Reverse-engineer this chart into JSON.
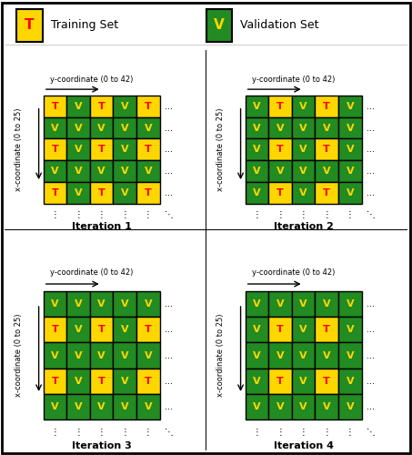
{
  "yellow": "#FFD700",
  "green": "#228B22",
  "red": "#FF0000",
  "yellow_letter": "#FFD700",
  "black": "#000000",
  "iterations": [
    {
      "title": "Iteration 1",
      "grid": [
        [
          "T",
          "V",
          "T",
          "V",
          "T"
        ],
        [
          "V",
          "V",
          "V",
          "V",
          "V"
        ],
        [
          "T",
          "V",
          "T",
          "V",
          "T"
        ],
        [
          "V",
          "V",
          "V",
          "V",
          "V"
        ],
        [
          "T",
          "V",
          "T",
          "V",
          "T"
        ]
      ]
    },
    {
      "title": "Iteration 2",
      "grid": [
        [
          "V",
          "T",
          "V",
          "T",
          "V"
        ],
        [
          "V",
          "V",
          "V",
          "V",
          "V"
        ],
        [
          "V",
          "T",
          "V",
          "T",
          "V"
        ],
        [
          "V",
          "V",
          "V",
          "V",
          "V"
        ],
        [
          "V",
          "T",
          "V",
          "T",
          "V"
        ]
      ]
    },
    {
      "title": "Iteration 3",
      "grid": [
        [
          "V",
          "V",
          "V",
          "V",
          "V"
        ],
        [
          "T",
          "V",
          "T",
          "V",
          "T"
        ],
        [
          "V",
          "V",
          "V",
          "V",
          "V"
        ],
        [
          "T",
          "V",
          "T",
          "V",
          "T"
        ],
        [
          "V",
          "V",
          "V",
          "V",
          "V"
        ]
      ]
    },
    {
      "title": "Iteration 4",
      "grid": [
        [
          "V",
          "V",
          "V",
          "V",
          "V"
        ],
        [
          "V",
          "T",
          "V",
          "T",
          "V"
        ],
        [
          "V",
          "V",
          "V",
          "V",
          "V"
        ],
        [
          "V",
          "T",
          "V",
          "T",
          "V"
        ],
        [
          "V",
          "V",
          "V",
          "V",
          "V"
        ]
      ]
    }
  ],
  "xcoord_label": "x-coordinate (0 to 25)",
  "ycoord_label": "y-coordinate (0 to 42)"
}
